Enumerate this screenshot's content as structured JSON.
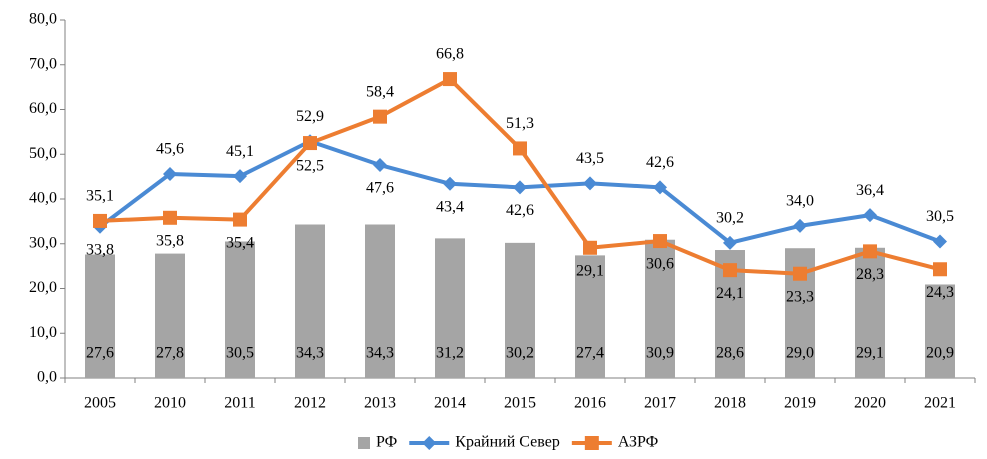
{
  "chart_data": {
    "type": "bar",
    "categories": [
      "2005",
      "2010",
      "2011",
      "2012",
      "2013",
      "2014",
      "2015",
      "2016",
      "2017",
      "2018",
      "2019",
      "2020",
      "2021"
    ],
    "series": [
      {
        "name": "РФ",
        "type": "bar",
        "color": "#a5a5a5",
        "values": [
          27.6,
          27.8,
          30.5,
          34.3,
          34.3,
          31.2,
          30.2,
          27.4,
          30.9,
          28.6,
          29.0,
          29.1,
          20.9
        ],
        "value_labels": [
          "27,6",
          "27,8",
          "30,5",
          "34,3",
          "34,3",
          "31,2",
          "30,2",
          "27,4",
          "30,9",
          "28,6",
          "29,0",
          "29,1",
          "20,9"
        ]
      },
      {
        "name": "Крайний Север",
        "type": "line",
        "color": "#4a8ad4",
        "values": [
          33.8,
          45.6,
          45.1,
          52.9,
          47.6,
          43.4,
          42.6,
          43.5,
          42.6,
          30.2,
          34.0,
          36.4,
          30.5
        ],
        "value_labels": [
          "33,8",
          "45,6",
          "45,1",
          "52,9",
          "47,6",
          "43,4",
          "42,6",
          "43,5",
          "42,6",
          "30,2",
          "34,0",
          "36,4",
          "30,5"
        ]
      },
      {
        "name": "АЗРФ",
        "type": "line",
        "color": "#ed7d31",
        "values": [
          35.1,
          35.8,
          35.4,
          52.5,
          58.4,
          66.8,
          51.3,
          29.1,
          30.6,
          24.1,
          23.3,
          28.3,
          24.3
        ],
        "value_labels": [
          "35,1",
          "35,8",
          "35,4",
          "52,5",
          "58,4",
          "66,8",
          "51,3",
          "29,1",
          "30,6",
          "24,1",
          "23,3",
          "28,3",
          "24,3"
        ]
      }
    ],
    "ylim": [
      0,
      80
    ],
    "yticks": [
      {
        "value": 0,
        "label": "0,0"
      },
      {
        "value": 10,
        "label": "10,0"
      },
      {
        "value": 20,
        "label": "20,0"
      },
      {
        "value": 30,
        "label": "30,0"
      },
      {
        "value": 40,
        "label": "40,0"
      },
      {
        "value": 50,
        "label": "50,0"
      },
      {
        "value": 60,
        "label": "60,0"
      },
      {
        "value": 70,
        "label": "70,0"
      },
      {
        "value": 80,
        "label": "80,0"
      }
    ]
  }
}
